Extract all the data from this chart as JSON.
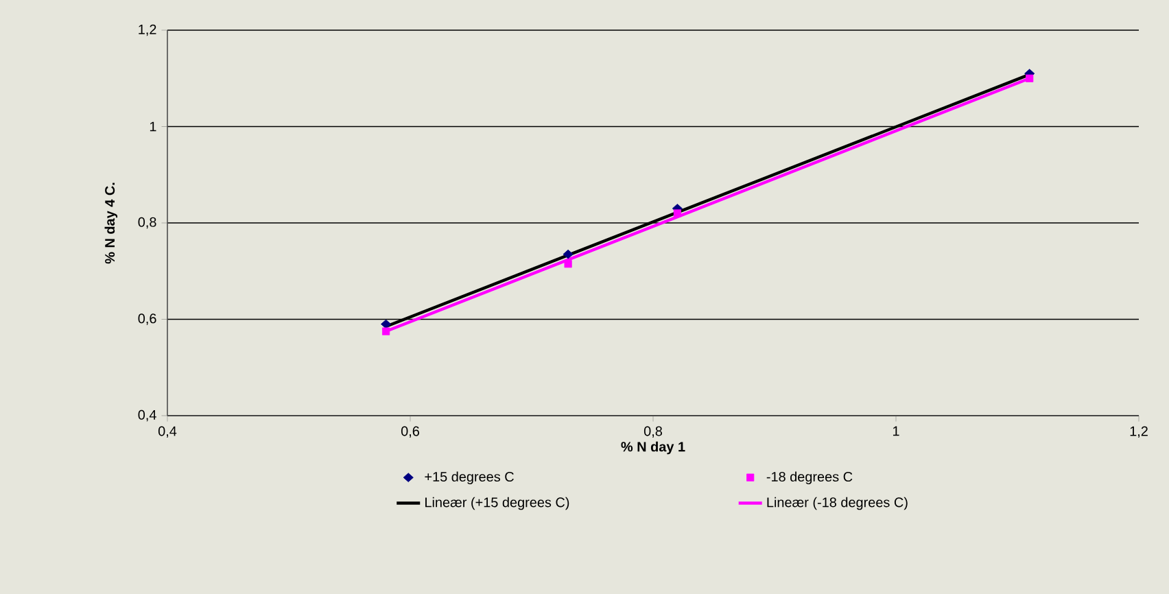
{
  "chart_data": {
    "type": "scatter",
    "xlabel": "% N day 1",
    "ylabel": "% N day 4 C.",
    "xlim": [
      0.4,
      1.2
    ],
    "ylim": [
      0.4,
      1.2
    ],
    "xticks": [
      {
        "value": 0.4,
        "label": "0,4"
      },
      {
        "value": 0.6,
        "label": "0,6"
      },
      {
        "value": 0.8,
        "label": "0,8"
      },
      1,
      {
        "value": 1.2,
        "label": "1,2"
      }
    ],
    "yticks": [
      {
        "value": 0.4,
        "label": "0,4"
      },
      {
        "value": 0.6,
        "label": "0,6"
      },
      {
        "value": 0.8,
        "label": "0,8"
      },
      1,
      {
        "value": 1.2,
        "label": "1,2"
      }
    ],
    "grid": "y",
    "legend": "bottom",
    "series": [
      {
        "name": "+15 degrees C",
        "marker": "diamond",
        "color": "#000080",
        "x": [
          0.58,
          0.73,
          0.82,
          1.11
        ],
        "values": [
          0.59,
          0.735,
          0.83,
          1.11
        ]
      },
      {
        "name": "-18 degrees C",
        "marker": "square",
        "color": "#ff00ff",
        "x": [
          0.58,
          0.73,
          0.82,
          1.11
        ],
        "values": [
          0.575,
          0.715,
          0.82,
          1.1
        ]
      },
      {
        "name": "Lineær (+15 degrees C)",
        "type": "line",
        "marker": "none",
        "line_style": "solid",
        "color": "#000000",
        "x": [
          0.58,
          1.11
        ],
        "values": [
          0.585,
          1.108
        ]
      },
      {
        "name": "Lineær (-18 degrees C)",
        "type": "line",
        "marker": "none",
        "line_style": "solid",
        "color": "#ff00ff",
        "x": [
          0.58,
          1.11
        ],
        "values": [
          0.575,
          1.1
        ]
      }
    ]
  }
}
